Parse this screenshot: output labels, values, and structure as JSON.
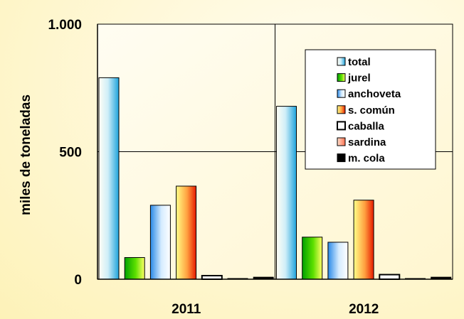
{
  "chart_data": {
    "type": "bar",
    "ylabel": "miles de toneladas",
    "ytick_labels": [
      "0",
      "500",
      "1.000"
    ],
    "ylim": [
      0,
      1000
    ],
    "yticks": [
      0,
      500,
      1000
    ],
    "categories": [
      "2011",
      "2012"
    ],
    "grid": "horizontal and vertical major gridlines",
    "legend_position": "top-right",
    "series": [
      {
        "name": "total",
        "values": [
          790,
          678
        ],
        "color": "#4ab4e4",
        "pattern": "gradient"
      },
      {
        "name": "jurel",
        "values": [
          85,
          165
        ],
        "color": "#33cc00",
        "pattern": "gradient"
      },
      {
        "name": "anchoveta",
        "values": [
          290,
          145
        ],
        "color": "#3399ff",
        "pattern": "gradient"
      },
      {
        "name": "s. común",
        "values": [
          365,
          310
        ],
        "color": "#ff3300",
        "pattern": "gradient"
      },
      {
        "name": "caballa",
        "values": [
          14,
          18
        ],
        "color": "#ffffff",
        "pattern": "outline"
      },
      {
        "name": "sardina",
        "values": [
          2,
          2
        ],
        "color": "#ff8866",
        "pattern": "gradient"
      },
      {
        "name": "m. cola",
        "values": [
          8,
          8
        ],
        "color": "#000000",
        "pattern": "solid"
      }
    ]
  }
}
